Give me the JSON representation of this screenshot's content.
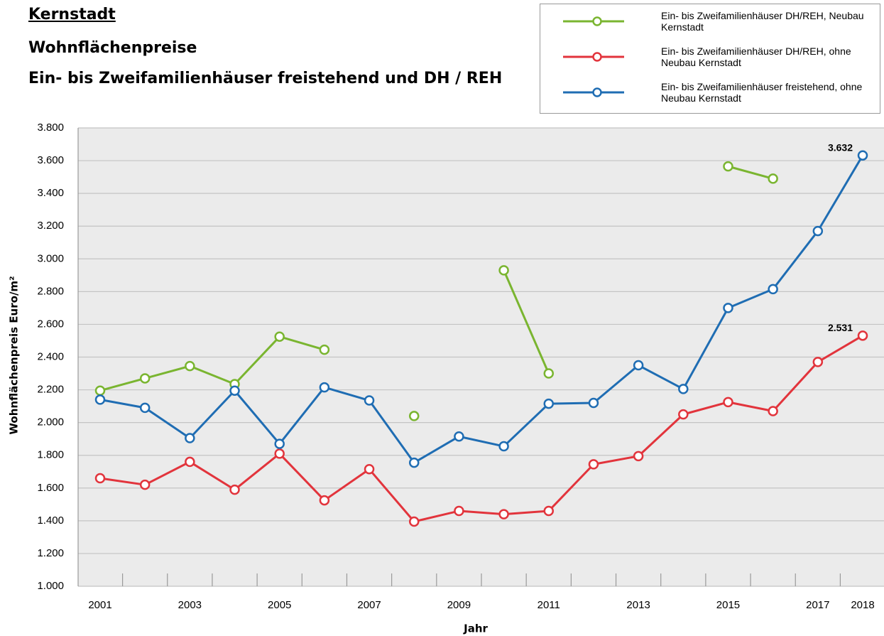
{
  "chart_data": {
    "type": "line",
    "title": "Kernstadt",
    "subtitle": [
      "Wohnflächenpreise",
      "Ein- bis Zweifamilienhäuser freistehend und DH / REH"
    ],
    "xlabel": "Jahr",
    "ylabel": "Wohnflächenpreis Euro/m²",
    "categories": [
      "2001",
      null,
      "2003",
      null,
      "2005",
      null,
      "2007",
      null,
      "2009",
      null,
      "2011",
      null,
      "2013",
      null,
      "2015",
      null,
      "2017",
      "2018"
    ],
    "ylim": [
      1000,
      3800
    ],
    "yticks": [
      {
        "value": 1000,
        "label": "1.000"
      },
      {
        "value": 1200,
        "label": "1.200"
      },
      {
        "value": 1400,
        "label": "1.400"
      },
      {
        "value": 1600,
        "label": "1.600"
      },
      {
        "value": 1800,
        "label": "1.800"
      },
      {
        "value": 2000,
        "label": "2.000"
      },
      {
        "value": 2200,
        "label": "2.200"
      },
      {
        "value": 2400,
        "label": "2.400"
      },
      {
        "value": 2600,
        "label": "2.600"
      },
      {
        "value": 2800,
        "label": "2.800"
      },
      {
        "value": 3000,
        "label": "3.000"
      },
      {
        "value": 3200,
        "label": "3.200"
      },
      {
        "value": 3400,
        "label": "3.400"
      },
      {
        "value": 3600,
        "label": "3.600"
      },
      {
        "value": 3800,
        "label": "3.800"
      }
    ],
    "grid": true,
    "legend": "top-right",
    "series": [
      {
        "name": "Ein- bis Zweifamilienhäuser DH/REH, Neubau Kernstadt",
        "color": "#7ab530",
        "values": [
          2195,
          2270,
          2345,
          2235,
          2525,
          2445,
          null,
          2040,
          null,
          2930,
          2300,
          null,
          null,
          null,
          3565,
          3490,
          null,
          null
        ]
      },
      {
        "name": "Ein- bis Zweifamilienhäuser DH/REH, ohne Neubau Kernstadt",
        "color": "#e2343c",
        "values": [
          1660,
          1620,
          1760,
          1590,
          1810,
          1525,
          1715,
          1395,
          1460,
          1440,
          1460,
          1745,
          1795,
          2050,
          2125,
          2070,
          2370,
          2531
        ],
        "value_labels": [
          null,
          null,
          null,
          null,
          null,
          null,
          null,
          null,
          null,
          null,
          null,
          null,
          null,
          null,
          null,
          null,
          null,
          "2.531"
        ]
      },
      {
        "name": "Ein- bis Zweifamilienhäuser freistehend, ohne Neubau Kernstadt",
        "color": "#1f6db3",
        "values": [
          2140,
          2090,
          1905,
          2195,
          1870,
          2215,
          2135,
          1755,
          1915,
          1855,
          2115,
          2120,
          2350,
          2205,
          2700,
          2815,
          3170,
          3632
        ],
        "value_labels": [
          null,
          null,
          null,
          null,
          null,
          null,
          null,
          null,
          null,
          null,
          null,
          null,
          null,
          null,
          null,
          null,
          null,
          "3.632"
        ]
      }
    ]
  }
}
